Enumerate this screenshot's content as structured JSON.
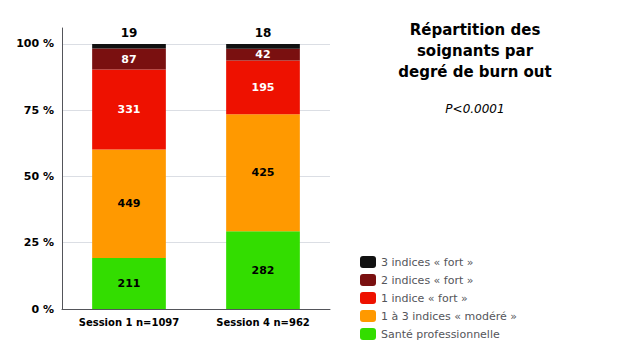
{
  "chart_data": {
    "type": "bar",
    "stacked": true,
    "title": "Répartition des\nsoignants par\ndegré de burn out",
    "subtitle": "P<0.0001",
    "categories": [
      "Session 1 n=1097",
      "Session 4 n=962"
    ],
    "series": [
      {
        "name": "Santé professionnelle",
        "color": "#33dd00",
        "values": [
          19.2343,
          29.3139
        ],
        "counts": [
          211,
          282
        ]
      },
      {
        "name": "1 à 3 indices « modéré »",
        "color": "#ff9900",
        "values": [
          40.9298,
          44.1788
        ],
        "counts": [
          449,
          425
        ]
      },
      {
        "name": "1 indice « fort »",
        "color": "#ee1100",
        "values": [
          30.1732,
          20.2703
        ],
        "counts": [
          331,
          195
        ]
      },
      {
        "name": "2 indices « fort »",
        "color": "#7a1010",
        "values": [
          7.9307,
          4.3659
        ],
        "counts": [
          87,
          42
        ]
      },
      {
        "name": "3 indices « fort »",
        "color": "#111111",
        "values": [
          1.732,
          1.8711
        ],
        "counts": [
          19,
          18
        ]
      }
    ],
    "ylim": [
      0,
      106
    ],
    "yticks": [
      {
        "value": 0,
        "label": "0 %"
      },
      {
        "value": 25,
        "label": "25 %"
      },
      {
        "value": 50,
        "label": "50 %"
      },
      {
        "value": 75,
        "label": "75 %"
      },
      {
        "value": 100,
        "label": "100 %"
      }
    ],
    "grid": true,
    "legend": "right"
  }
}
